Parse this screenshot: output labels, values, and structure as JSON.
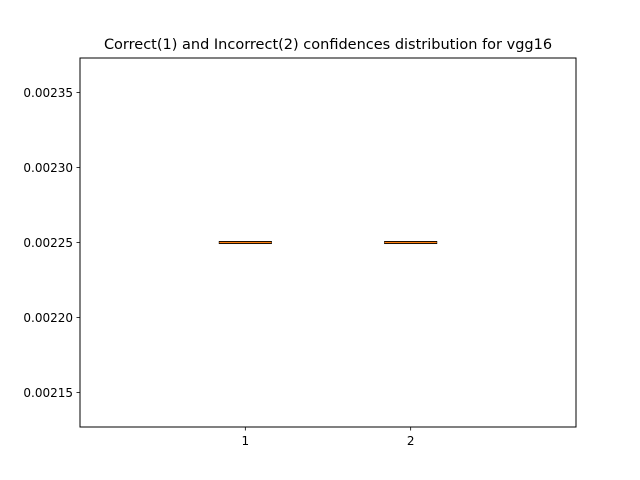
{
  "chart_data": {
    "type": "box",
    "title": "Correct(1) and Incorrect(2) confidences distribution for vgg16",
    "xlabel": "",
    "ylabel": "",
    "categories": [
      "1",
      "2"
    ],
    "boxes": [
      {
        "category": "1",
        "min": 0.00225,
        "q1": 0.00225,
        "median": 0.00225,
        "q3": 0.00225,
        "max": 0.00225
      },
      {
        "category": "2",
        "min": 0.00225,
        "q1": 0.00225,
        "median": 0.00225,
        "q3": 0.00225,
        "max": 0.00225
      }
    ],
    "ylim": [
      0.002127,
      0.002373
    ],
    "yticks": [
      0.00215,
      0.0022,
      0.00225,
      0.0023,
      0.00235
    ],
    "ytick_labels": [
      "0.00215",
      "0.00220",
      "0.00225",
      "0.00230",
      "0.00235"
    ],
    "grid": false,
    "colors": {
      "box": "#000000",
      "median": "#ff7f0e"
    }
  }
}
